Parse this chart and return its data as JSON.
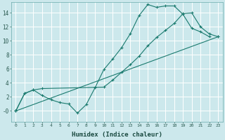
{
  "xlabel": "Humidex (Indice chaleur)",
  "bg_color": "#cce8ec",
  "grid_color": "#ffffff",
  "line_color": "#1a7a6e",
  "xlim": [
    -0.5,
    23.5
  ],
  "ylim": [
    -1.5,
    15.5
  ],
  "xticks": [
    0,
    1,
    2,
    3,
    4,
    5,
    6,
    7,
    8,
    9,
    10,
    11,
    12,
    13,
    14,
    15,
    16,
    17,
    18,
    19,
    20,
    21,
    22,
    23
  ],
  "yticks": [
    0,
    2,
    4,
    6,
    8,
    10,
    12,
    14
  ],
  "ytick_labels": [
    "-0",
    "2",
    "4",
    "6",
    "8",
    "10",
    "12",
    "14"
  ],
  "line1_x": [
    0,
    1,
    2,
    3,
    4,
    5,
    6,
    7,
    8,
    9,
    10,
    11,
    12,
    13,
    14,
    15,
    16,
    17,
    18,
    19,
    20,
    21,
    22
  ],
  "line1_y": [
    0,
    2.5,
    3.0,
    2.2,
    1.6,
    1.2,
    1.0,
    -0.3,
    0.9,
    3.3,
    5.9,
    7.4,
    9.0,
    11.0,
    13.6,
    15.2,
    14.8,
    15.0,
    15.0,
    13.8,
    11.8,
    11.3,
    10.6
  ],
  "line2_x": [
    0,
    1,
    2,
    3,
    10,
    11,
    12,
    13,
    14,
    15,
    16,
    17,
    18,
    19,
    20,
    21,
    22,
    23
  ],
  "line2_y": [
    0,
    2.5,
    3.0,
    3.2,
    3.4,
    4.4,
    5.5,
    6.6,
    7.8,
    9.3,
    10.5,
    11.5,
    12.5,
    13.9,
    14.0,
    12.0,
    11.0,
    10.6
  ],
  "line3_x": [
    0,
    23
  ],
  "line3_y": [
    0,
    10.6
  ]
}
